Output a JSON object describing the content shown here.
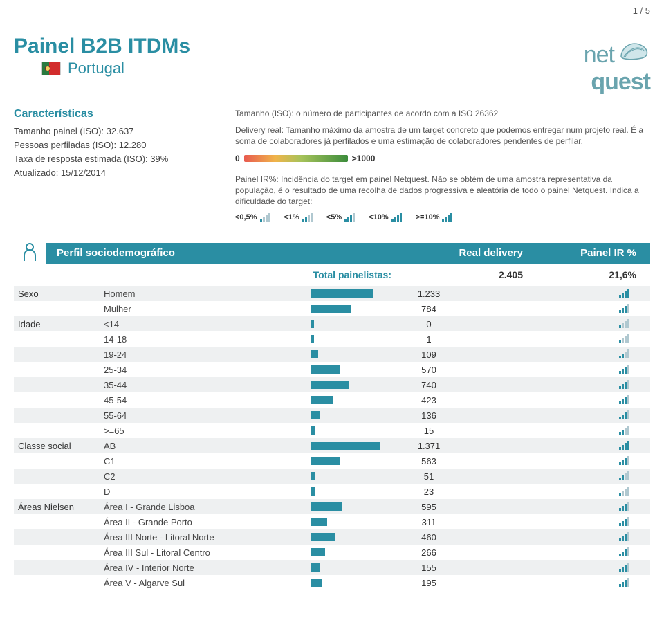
{
  "page_number": "1 / 5",
  "title": "Painel B2B ITDMs",
  "country": "Portugal",
  "flag_colors": [
    "#2a7a3f",
    "#d22c2c"
  ],
  "logo": {
    "net": "net",
    "quest": "quest"
  },
  "characteristics": {
    "heading": "Características",
    "items": [
      "Tamanho painel (ISO): 32.637",
      "Pessoas perfiladas (ISO): 12.280",
      "Taxa de resposta estimada (ISO): 39%",
      "Atualizado: 15/12/2014"
    ]
  },
  "desc": {
    "p1": "Tamanho (ISO): o número de participantes de acordo com a ISO 26362",
    "p2": "Delivery real: Tamanho máximo da amostra de um target concreto que podemos entregar num projeto real. É a soma de colaboradores já perfilados e uma estimação de colaboradores pendentes de perfilar.",
    "gauge_low": "0",
    "gauge_high": ">1000",
    "p3": "Painel IR%: Incidência do target em painel Netquest. Não se obtém de uma amostra representativa da população, é o resultado de uma recolha de dados progressiva e aleatória de todo o painel Netquest. Indica a dificuldade do target:",
    "indicators": [
      "<0,5%",
      "<1%",
      "<5%",
      "<10%",
      ">=10%"
    ]
  },
  "band": {
    "left": "Perfil sociodemográfico",
    "mid": "Real delivery",
    "right": "Painel IR %"
  },
  "total": {
    "label": "Total painelistas:",
    "value": "2.405",
    "pct": "21,6%"
  },
  "rows": [
    {
      "group": "Sexo",
      "label": "Homem",
      "value": "1.233",
      "bar": 90,
      "bars": 4,
      "shade": true
    },
    {
      "group": "",
      "label": "Mulher",
      "value": "784",
      "bar": 57,
      "bars": 3,
      "shade": false
    },
    {
      "group": "Idade",
      "label": "<14",
      "value": "0",
      "bar": 4,
      "bars": 1,
      "shade": true
    },
    {
      "group": "",
      "label": "14-18",
      "value": "1",
      "bar": 4,
      "bars": 1,
      "shade": false
    },
    {
      "group": "",
      "label": "19-24",
      "value": "109",
      "bar": 10,
      "bars": 2,
      "shade": true
    },
    {
      "group": "",
      "label": "25-34",
      "value": "570",
      "bar": 42,
      "bars": 3,
      "shade": false
    },
    {
      "group": "",
      "label": "35-44",
      "value": "740",
      "bar": 54,
      "bars": 3,
      "shade": true
    },
    {
      "group": "",
      "label": "45-54",
      "value": "423",
      "bar": 31,
      "bars": 3,
      "shade": false
    },
    {
      "group": "",
      "label": "55-64",
      "value": "136",
      "bar": 12,
      "bars": 3,
      "shade": true
    },
    {
      "group": "",
      "label": ">=65",
      "value": "15",
      "bar": 5,
      "bars": 2,
      "shade": false
    },
    {
      "group": "Classe social",
      "label": "AB",
      "value": "1.371",
      "bar": 100,
      "bars": 4,
      "shade": true
    },
    {
      "group": "",
      "label": "C1",
      "value": "563",
      "bar": 41,
      "bars": 3,
      "shade": false
    },
    {
      "group": "",
      "label": "C2",
      "value": "51",
      "bar": 6,
      "bars": 2,
      "shade": true
    },
    {
      "group": "",
      "label": "D",
      "value": "23",
      "bar": 5,
      "bars": 1,
      "shade": false
    },
    {
      "group": "Áreas Nielsen",
      "label": "Área I - Grande Lisboa",
      "value": "595",
      "bar": 44,
      "bars": 3,
      "shade": true
    },
    {
      "group": "",
      "label": "Área II - Grande Porto",
      "value": "311",
      "bar": 23,
      "bars": 3,
      "shade": false
    },
    {
      "group": "",
      "label": "Área III Norte - Litoral Norte",
      "value": "460",
      "bar": 34,
      "bars": 3,
      "shade": true
    },
    {
      "group": "",
      "label": "Área III Sul - Litoral Centro",
      "value": "266",
      "bar": 20,
      "bars": 3,
      "shade": false
    },
    {
      "group": "",
      "label": "Área IV  - Interior Norte",
      "value": "155",
      "bar": 13,
      "bars": 3,
      "shade": true
    },
    {
      "group": "",
      "label": "Área V - Algarve Sul",
      "value": "195",
      "bar": 16,
      "bars": 3,
      "shade": false
    }
  ],
  "colors": {
    "brand": "#2a8ea3",
    "bar_off": "#b0c8d0",
    "bar_on": "#2a8ea3"
  }
}
